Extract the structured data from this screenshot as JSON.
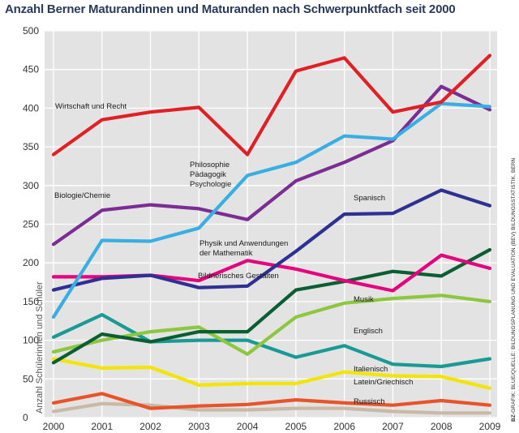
{
  "chart_data": {
    "type": "line",
    "title": "Anzahl Berner Maturandinnen und Maturanden nach Schwerpunktfach seit 2000",
    "xlabel": "",
    "ylabel": "Anzahl Schülerinnen und Schüler",
    "x": [
      2000,
      2001,
      2002,
      2003,
      2004,
      2005,
      2006,
      2007,
      2008,
      2009
    ],
    "xticks": [
      "2000",
      "2001",
      "2002",
      "2003",
      "2004",
      "2005",
      "2006",
      "2007",
      "2008",
      "2009"
    ],
    "ylim": [
      0,
      500
    ],
    "yticks": [
      "0",
      "50",
      "100",
      "150",
      "200",
      "250",
      "300",
      "350",
      "400",
      "450",
      "500"
    ],
    "grid": true,
    "series": [
      {
        "name": "Wirtschaft und Recht",
        "color": "#e02027",
        "values": [
          340,
          385,
          395,
          401,
          340,
          448,
          465,
          395,
          408,
          468
        ]
      },
      {
        "name": "Philosophie Pädagogik Psychologie",
        "color": "#3aaee3",
        "values": [
          130,
          229,
          228,
          245,
          313,
          330,
          364,
          360,
          406,
          402
        ]
      },
      {
        "name": "Biologie/Chemie",
        "color": "#7b2d93",
        "values": [
          224,
          268,
          275,
          270,
          256,
          306,
          330,
          358,
          428,
          398
        ]
      },
      {
        "name": "Spanisch",
        "color": "#2e3192",
        "values": [
          165,
          180,
          184,
          168,
          170,
          215,
          263,
          264,
          294,
          274
        ]
      },
      {
        "name": "Physik und Anwendungen der Mathematik",
        "color": "#e5007e",
        "values": [
          182,
          182,
          184,
          177,
          203,
          192,
          177,
          164,
          210,
          193
        ]
      },
      {
        "name": "Bildnerisches Gestalten",
        "color": "#0b5e34",
        "values": [
          71,
          108,
          98,
          111,
          111,
          165,
          176,
          189,
          183,
          217
        ]
      },
      {
        "name": "Musik",
        "color": "#8dc63f",
        "values": [
          85,
          100,
          111,
          117,
          82,
          130,
          148,
          154,
          158,
          150
        ]
      },
      {
        "name": "Englisch",
        "color": "#199a94",
        "values": [
          104,
          133,
          98,
          100,
          100,
          78,
          93,
          69,
          66,
          76
        ]
      },
      {
        "name": "Italienisch",
        "color": "#f2e500",
        "values": [
          76,
          64,
          65,
          42,
          44,
          44,
          59,
          54,
          53,
          38
        ]
      },
      {
        "name": "Latein/Griechisch",
        "color": "#e8542a",
        "values": [
          19,
          31,
          12,
          15,
          17,
          23,
          19,
          16,
          22,
          16
        ]
      },
      {
        "name": "Russisch",
        "color": "#c9b9a6",
        "values": [
          8,
          18,
          16,
          10,
          10,
          12,
          12,
          8,
          6,
          6
        ]
      }
    ],
    "labels": [
      {
        "series": 0,
        "lines": [
          "Wirtschaft und Recht"
        ]
      },
      {
        "series": 1,
        "lines": [
          "Philosophie",
          "Pädagogik",
          "Psychologie"
        ]
      },
      {
        "series": 2,
        "lines": [
          "Biologie/Chemie"
        ]
      },
      {
        "series": 3,
        "lines": [
          "Spanisch"
        ]
      },
      {
        "series": 4,
        "lines": [
          "Physik und Anwendungen",
          "der Mathematik"
        ]
      },
      {
        "series": 5,
        "lines": [
          "Bildnerisches Gestalten"
        ]
      },
      {
        "series": 6,
        "lines": [
          "Musik"
        ]
      },
      {
        "series": 7,
        "lines": [
          "Englisch"
        ]
      },
      {
        "series": 8,
        "lines": [
          "Italienisch"
        ]
      },
      {
        "series": 9,
        "lines": [
          "Latein/Griechisch"
        ]
      },
      {
        "series": 10,
        "lines": [
          "Russisch"
        ]
      }
    ],
    "credit": {
      "prefix": "BZ-",
      "text": "GRAFIK: BLUE/QUELLE: BILDUNGSPLANUNG UND EVALUATION (BEV) BILDUNGSSTATISTIK, BERN"
    }
  }
}
